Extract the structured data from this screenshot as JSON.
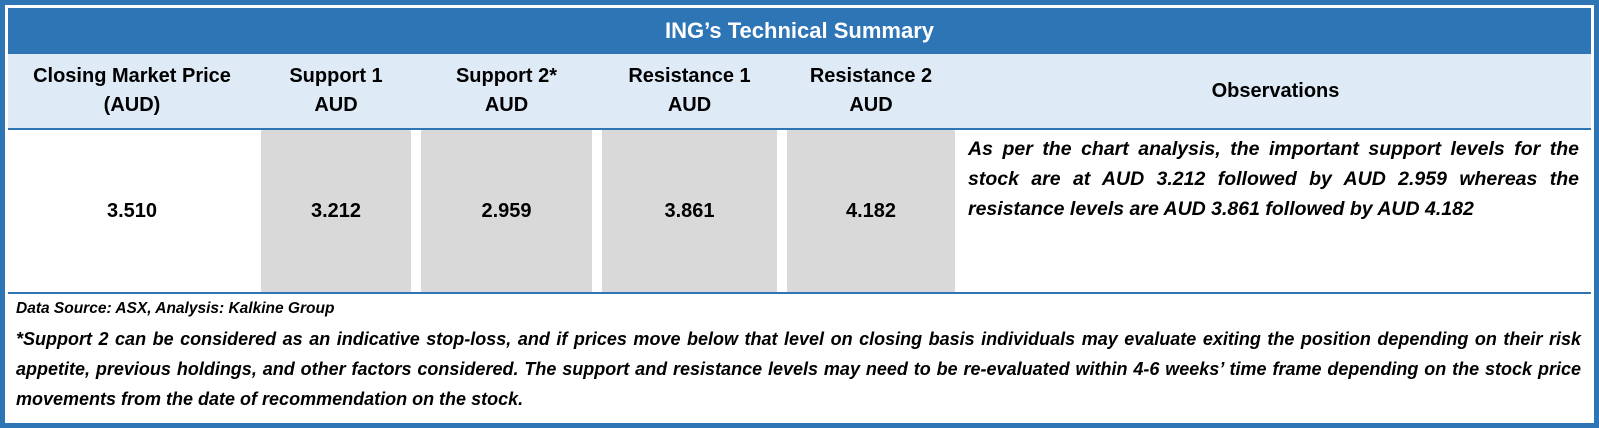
{
  "colors": {
    "title_bg": "#2E75B6",
    "title_text": "#FFFFFF",
    "header_bg": "#DEEAF6",
    "cell_gray": "#D9D9D9",
    "border_blue": "#2E75B6",
    "body_text": "#000000"
  },
  "table": {
    "title": "ING’s Technical Summary",
    "columns": [
      {
        "label": "Closing Market Price",
        "sub": "(AUD)"
      },
      {
        "label": "Support 1",
        "sub": "AUD"
      },
      {
        "label": "Support 2*",
        "sub": "AUD"
      },
      {
        "label": "Resistance 1",
        "sub": "AUD"
      },
      {
        "label": "Resistance 2",
        "sub": "AUD"
      },
      {
        "label": "Observations",
        "sub": ""
      }
    ],
    "cells": [
      "3.510",
      "3.212",
      "2.959",
      "3.861",
      "4.182"
    ],
    "observations": "As per the chart analysis, the important support levels for the stock are at AUD 3.212 followed by AUD 2.959 whereas the resistance levels are AUD 3.861 followed by AUD 4.182",
    "data_source": "Data Source: ASX, Analysis: Kalkine Group",
    "footnote": "*Support 2 can be considered as an indicative stop-loss, and if prices move below that level on closing basis individuals may evaluate exiting the position depending on their risk appetite, previous holdings, and other factors considered. The support and resistance levels may need to be re-evaluated within 4-6 weeks’ time frame depending on the stock price movements from the date of recommendation on the stock."
  },
  "chart_data": {
    "type": "table",
    "title": "ING’s Technical Summary",
    "columns": [
      "Closing Market Price (AUD)",
      "Support 1 AUD",
      "Support 2* AUD",
      "Resistance 1 AUD",
      "Resistance 2 AUD",
      "Observations"
    ],
    "rows": [
      [
        "3.510",
        "3.212",
        "2.959",
        "3.861",
        "4.182",
        "As per the chart analysis, the important support levels for the stock are at AUD 3.212 followed by AUD 2.959 whereas the resistance levels are AUD 3.861 followed by AUD 4.182"
      ]
    ],
    "notes": [
      "Data Source: ASX, Analysis: Kalkine Group",
      "*Support 2 can be considered as an indicative stop-loss, and if prices move below that level on closing basis individuals may evaluate exiting the position depending on their risk appetite, previous holdings, and other factors considered. The support and resistance levels may need to be re-evaluated within 4-6 weeks’ time frame depending on the stock price movements from the date of recommendation on the stock."
    ]
  }
}
